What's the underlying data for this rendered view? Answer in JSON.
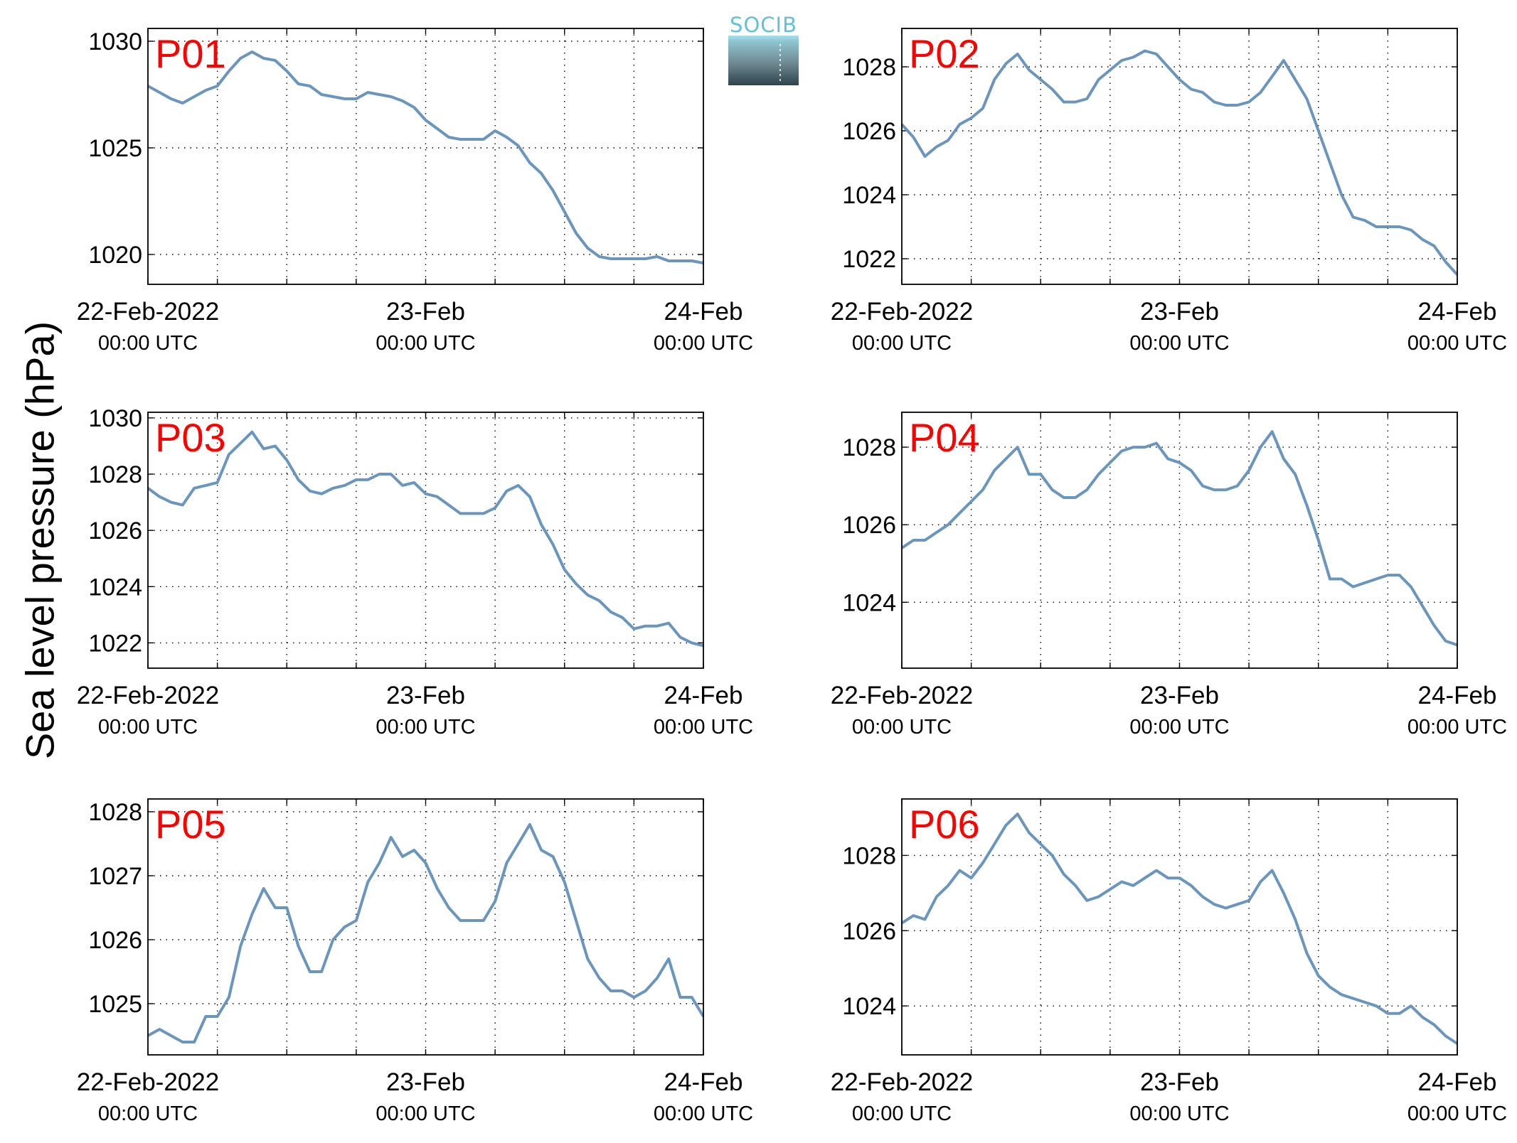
{
  "figure": {
    "ylabel": "Sea level pressure (hPa)",
    "logo_text": "SOCIB",
    "colors": {
      "line": "#6a95bd",
      "station_label": "#ff0000",
      "grid": "#000000"
    }
  },
  "chart_data": [
    {
      "type": "line",
      "title": "P01",
      "xticks": [
        {
          "day": 0,
          "line1": "22-Feb-2022",
          "line2": "00:00 UTC"
        },
        {
          "day": 1,
          "line1": "23-Feb",
          "line2": "00:00 UTC"
        },
        {
          "day": 2,
          "line1": "24-Feb",
          "line2": "00:00 UTC"
        }
      ],
      "xgrid": [
        0.25,
        0.5,
        0.75,
        1.25,
        1.5,
        1.75
      ],
      "xlim": [
        0,
        2
      ],
      "ylim": [
        1018.6,
        1030.6
      ],
      "yticks": [
        1020,
        1025,
        1030
      ],
      "grid": true,
      "x": [
        0,
        0.0417,
        0.0833,
        0.125,
        0.1667,
        0.2083,
        0.25,
        0.2917,
        0.3333,
        0.375,
        0.4167,
        0.4583,
        0.5,
        0.5417,
        0.5833,
        0.625,
        0.6667,
        0.7083,
        0.75,
        0.7917,
        0.8333,
        0.875,
        0.9167,
        0.9583,
        1,
        1.0417,
        1.0833,
        1.125,
        1.1667,
        1.2083,
        1.25,
        1.2917,
        1.3333,
        1.375,
        1.4167,
        1.4583,
        1.5,
        1.5417,
        1.5833,
        1.625,
        1.6667,
        1.7083,
        1.75,
        1.7917,
        1.8333,
        1.875,
        1.9167,
        1.9583,
        2
      ],
      "y": [
        1027.9,
        1027.6,
        1027.3,
        1027.1,
        1027.4,
        1027.7,
        1027.9,
        1028.6,
        1029.2,
        1029.5,
        1029.2,
        1029.1,
        1028.6,
        1028.0,
        1027.9,
        1027.5,
        1027.4,
        1027.3,
        1027.3,
        1027.6,
        1027.5,
        1027.4,
        1027.2,
        1026.9,
        1026.3,
        1025.9,
        1025.5,
        1025.4,
        1025.4,
        1025.4,
        1025.8,
        1025.5,
        1025.1,
        1024.3,
        1023.8,
        1023.0,
        1022.0,
        1021.0,
        1020.3,
        1019.9,
        1019.8,
        1019.8,
        1019.8,
        1019.8,
        1019.9,
        1019.7,
        1019.7,
        1019.7,
        1019.6
      ]
    },
    {
      "type": "line",
      "title": "P02",
      "xticks": [
        {
          "day": 0,
          "line1": "22-Feb-2022",
          "line2": "00:00 UTC"
        },
        {
          "day": 1,
          "line1": "23-Feb",
          "line2": "00:00 UTC"
        },
        {
          "day": 2,
          "line1": "24-Feb",
          "line2": "00:00 UTC"
        }
      ],
      "xgrid": [
        0.25,
        0.5,
        0.75,
        1.25,
        1.5,
        1.75
      ],
      "xlim": [
        0,
        2
      ],
      "ylim": [
        1021.2,
        1029.2
      ],
      "yticks": [
        1022,
        1024,
        1026,
        1028
      ],
      "grid": true,
      "x": [
        0,
        0.0417,
        0.0833,
        0.125,
        0.1667,
        0.2083,
        0.25,
        0.2917,
        0.3333,
        0.375,
        0.4167,
        0.4583,
        0.5,
        0.5417,
        0.5833,
        0.625,
        0.6667,
        0.7083,
        0.75,
        0.7917,
        0.8333,
        0.875,
        0.9167,
        0.9583,
        1,
        1.0417,
        1.0833,
        1.125,
        1.1667,
        1.2083,
        1.25,
        1.2917,
        1.3333,
        1.375,
        1.4167,
        1.4583,
        1.5,
        1.5417,
        1.5833,
        1.625,
        1.6667,
        1.7083,
        1.75,
        1.7917,
        1.8333,
        1.875,
        1.9167,
        1.9583,
        2
      ],
      "y": [
        1026.2,
        1025.8,
        1025.2,
        1025.5,
        1025.7,
        1026.2,
        1026.4,
        1026.7,
        1027.6,
        1028.1,
        1028.4,
        1027.9,
        1027.6,
        1027.3,
        1026.9,
        1026.9,
        1027.0,
        1027.6,
        1027.9,
        1028.2,
        1028.3,
        1028.5,
        1028.4,
        1028.0,
        1027.6,
        1027.3,
        1027.2,
        1026.9,
        1026.8,
        1026.8,
        1026.9,
        1027.2,
        1027.7,
        1028.2,
        1027.6,
        1027.0,
        1026.0,
        1025.0,
        1024.0,
        1023.3,
        1023.2,
        1023.0,
        1023.0,
        1023.0,
        1022.9,
        1022.6,
        1022.4,
        1021.9,
        1021.5
      ]
    },
    {
      "type": "line",
      "title": "P03",
      "xticks": [
        {
          "day": 0,
          "line1": "22-Feb-2022",
          "line2": "00:00 UTC"
        },
        {
          "day": 1,
          "line1": "23-Feb",
          "line2": "00:00 UTC"
        },
        {
          "day": 2,
          "line1": "24-Feb",
          "line2": "00:00 UTC"
        }
      ],
      "xgrid": [
        0.25,
        0.5,
        0.75,
        1.25,
        1.5,
        1.75
      ],
      "xlim": [
        0,
        2
      ],
      "ylim": [
        1021.1,
        1030.2
      ],
      "yticks": [
        1022,
        1024,
        1026,
        1028,
        1030
      ],
      "grid": true,
      "x": [
        0,
        0.0417,
        0.0833,
        0.125,
        0.1667,
        0.2083,
        0.25,
        0.2917,
        0.3333,
        0.375,
        0.4167,
        0.4583,
        0.5,
        0.5417,
        0.5833,
        0.625,
        0.6667,
        0.7083,
        0.75,
        0.7917,
        0.8333,
        0.875,
        0.9167,
        0.9583,
        1,
        1.0417,
        1.0833,
        1.125,
        1.1667,
        1.2083,
        1.25,
        1.2917,
        1.3333,
        1.375,
        1.4167,
        1.4583,
        1.5,
        1.5417,
        1.5833,
        1.625,
        1.6667,
        1.7083,
        1.75,
        1.7917,
        1.8333,
        1.875,
        1.9167,
        1.9583,
        2
      ],
      "y": [
        1027.5,
        1027.2,
        1027.0,
        1026.9,
        1027.5,
        1027.6,
        1027.7,
        1028.7,
        1029.1,
        1029.5,
        1028.9,
        1029.0,
        1028.5,
        1027.8,
        1027.4,
        1027.3,
        1027.5,
        1027.6,
        1027.8,
        1027.8,
        1028.0,
        1028.0,
        1027.6,
        1027.7,
        1027.3,
        1027.2,
        1026.9,
        1026.6,
        1026.6,
        1026.6,
        1026.8,
        1027.4,
        1027.6,
        1027.2,
        1026.2,
        1025.5,
        1024.6,
        1024.1,
        1023.7,
        1023.5,
        1023.1,
        1022.9,
        1022.5,
        1022.6,
        1022.6,
        1022.7,
        1022.2,
        1022.0,
        1021.9
      ]
    },
    {
      "type": "line",
      "title": "P04",
      "xticks": [
        {
          "day": 0,
          "line1": "22-Feb-2022",
          "line2": "00:00 UTC"
        },
        {
          "day": 1,
          "line1": "23-Feb",
          "line2": "00:00 UTC"
        },
        {
          "day": 2,
          "line1": "24-Feb",
          "line2": "00:00 UTC"
        }
      ],
      "xgrid": [
        0.25,
        0.5,
        0.75,
        1.25,
        1.5,
        1.75
      ],
      "xlim": [
        0,
        2
      ],
      "ylim": [
        1022.3,
        1028.9
      ],
      "yticks": [
        1024,
        1026,
        1028
      ],
      "grid": true,
      "x": [
        0,
        0.0417,
        0.0833,
        0.125,
        0.1667,
        0.2083,
        0.25,
        0.2917,
        0.3333,
        0.375,
        0.4167,
        0.4583,
        0.5,
        0.5417,
        0.5833,
        0.625,
        0.6667,
        0.7083,
        0.75,
        0.7917,
        0.8333,
        0.875,
        0.9167,
        0.9583,
        1,
        1.0417,
        1.0833,
        1.125,
        1.1667,
        1.2083,
        1.25,
        1.2917,
        1.3333,
        1.375,
        1.4167,
        1.4583,
        1.5,
        1.5417,
        1.5833,
        1.625,
        1.6667,
        1.7083,
        1.75,
        1.7917,
        1.8333,
        1.875,
        1.9167,
        1.9583,
        2
      ],
      "y": [
        1025.4,
        1025.6,
        1025.6,
        1025.8,
        1026.0,
        1026.3,
        1026.6,
        1026.9,
        1027.4,
        1027.7,
        1028.0,
        1027.3,
        1027.3,
        1026.9,
        1026.7,
        1026.7,
        1026.9,
        1027.3,
        1027.6,
        1027.9,
        1028.0,
        1028.0,
        1028.1,
        1027.7,
        1027.6,
        1027.4,
        1027.0,
        1026.9,
        1026.9,
        1027.0,
        1027.4,
        1028.0,
        1028.4,
        1027.7,
        1027.3,
        1026.5,
        1025.6,
        1024.6,
        1024.6,
        1024.4,
        1024.5,
        1024.6,
        1024.7,
        1024.7,
        1024.4,
        1023.9,
        1023.4,
        1023.0,
        1022.9
      ]
    },
    {
      "type": "line",
      "title": "P05",
      "xticks": [
        {
          "day": 0,
          "line1": "22-Feb-2022",
          "line2": "00:00 UTC"
        },
        {
          "day": 1,
          "line1": "23-Feb",
          "line2": "00:00 UTC"
        },
        {
          "day": 2,
          "line1": "24-Feb",
          "line2": "00:00 UTC"
        }
      ],
      "xgrid": [
        0.25,
        0.5,
        0.75,
        1.25,
        1.5,
        1.75
      ],
      "xlim": [
        0,
        2
      ],
      "ylim": [
        1024.2,
        1028.2
      ],
      "yticks": [
        1025,
        1026,
        1027,
        1028
      ],
      "grid": true,
      "x": [
        0,
        0.0417,
        0.0833,
        0.125,
        0.1667,
        0.2083,
        0.25,
        0.2917,
        0.3333,
        0.375,
        0.4167,
        0.4583,
        0.5,
        0.5417,
        0.5833,
        0.625,
        0.6667,
        0.7083,
        0.75,
        0.7917,
        0.8333,
        0.875,
        0.9167,
        0.9583,
        1,
        1.0417,
        1.0833,
        1.125,
        1.1667,
        1.2083,
        1.25,
        1.2917,
        1.3333,
        1.375,
        1.4167,
        1.4583,
        1.5,
        1.5417,
        1.5833,
        1.625,
        1.6667,
        1.7083,
        1.75,
        1.7917,
        1.8333,
        1.875,
        1.9167,
        1.9583,
        2
      ],
      "y": [
        1024.5,
        1024.6,
        1024.5,
        1024.4,
        1024.4,
        1024.8,
        1024.8,
        1025.1,
        1025.9,
        1026.4,
        1026.8,
        1026.5,
        1026.5,
        1025.9,
        1025.5,
        1025.5,
        1026.0,
        1026.2,
        1026.3,
        1026.9,
        1027.2,
        1027.6,
        1027.3,
        1027.4,
        1027.2,
        1026.8,
        1026.5,
        1026.3,
        1026.3,
        1026.3,
        1026.6,
        1027.2,
        1027.5,
        1027.8,
        1027.4,
        1027.3,
        1026.9,
        1026.3,
        1025.7,
        1025.4,
        1025.2,
        1025.2,
        1025.1,
        1025.2,
        1025.4,
        1025.7,
        1025.1,
        1025.1,
        1024.8
      ]
    },
    {
      "type": "line",
      "title": "P06",
      "xticks": [
        {
          "day": 0,
          "line1": "22-Feb-2022",
          "line2": "00:00 UTC"
        },
        {
          "day": 1,
          "line1": "23-Feb",
          "line2": "00:00 UTC"
        },
        {
          "day": 2,
          "line1": "24-Feb",
          "line2": "00:00 UTC"
        }
      ],
      "xgrid": [
        0.25,
        0.5,
        0.75,
        1.25,
        1.5,
        1.75
      ],
      "xlim": [
        0,
        2
      ],
      "ylim": [
        1022.7,
        1029.5
      ],
      "yticks": [
        1024,
        1026,
        1028
      ],
      "grid": true,
      "x": [
        0,
        0.0417,
        0.0833,
        0.125,
        0.1667,
        0.2083,
        0.25,
        0.2917,
        0.3333,
        0.375,
        0.4167,
        0.4583,
        0.5,
        0.5417,
        0.5833,
        0.625,
        0.6667,
        0.7083,
        0.75,
        0.7917,
        0.8333,
        0.875,
        0.9167,
        0.9583,
        1,
        1.0417,
        1.0833,
        1.125,
        1.1667,
        1.2083,
        1.25,
        1.2917,
        1.3333,
        1.375,
        1.4167,
        1.4583,
        1.5,
        1.5417,
        1.5833,
        1.625,
        1.6667,
        1.7083,
        1.75,
        1.7917,
        1.8333,
        1.875,
        1.9167,
        1.9583,
        2
      ],
      "y": [
        1026.2,
        1026.4,
        1026.3,
        1026.9,
        1027.2,
        1027.6,
        1027.4,
        1027.8,
        1028.3,
        1028.8,
        1029.1,
        1028.6,
        1028.3,
        1028.0,
        1027.5,
        1027.2,
        1026.8,
        1026.9,
        1027.1,
        1027.3,
        1027.2,
        1027.4,
        1027.6,
        1027.4,
        1027.4,
        1027.2,
        1026.9,
        1026.7,
        1026.6,
        1026.7,
        1026.8,
        1027.3,
        1027.6,
        1027.0,
        1026.3,
        1025.4,
        1024.8,
        1024.5,
        1024.3,
        1024.2,
        1024.1,
        1024.0,
        1023.8,
        1023.8,
        1024.0,
        1023.7,
        1023.5,
        1023.2,
        1023.0
      ]
    }
  ]
}
